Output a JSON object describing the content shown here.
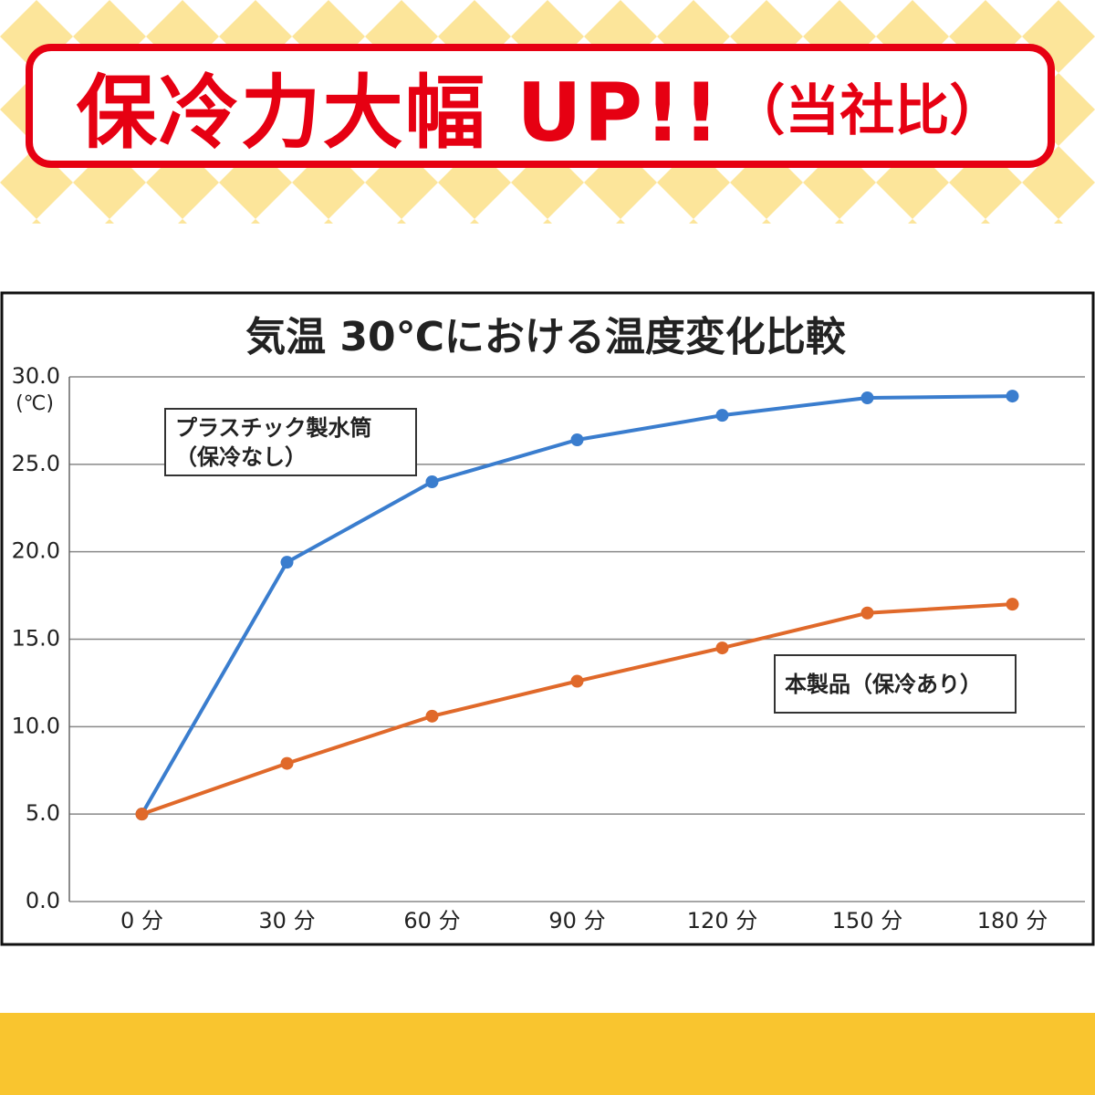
{
  "banner": {
    "headline": "保冷力大幅 UP!!",
    "note": "（当社比）"
  },
  "chart_data": {
    "type": "line",
    "title": "気温 30℃における温度変化比較",
    "y_unit_label": "(℃)",
    "categories": [
      "0 分",
      "30 分",
      "60 分",
      "90 分",
      "120 分",
      "150 分",
      "180 分"
    ],
    "ylim": [
      0,
      30
    ],
    "yticks": [
      {
        "value": 0,
        "label": "0.0"
      },
      {
        "value": 5,
        "label": "5.0"
      },
      {
        "value": 10,
        "label": "10.0"
      },
      {
        "value": 15,
        "label": "15.0"
      },
      {
        "value": 20,
        "label": "20.0"
      },
      {
        "value": 25,
        "label": "25.0"
      },
      {
        "value": 30,
        "label": "30.0"
      }
    ],
    "grid": true,
    "series": [
      {
        "name": "プラスチック製水筒（保冷なし）",
        "color": "#3a7dce",
        "values": [
          5.0,
          19.4,
          24.0,
          26.4,
          27.8,
          28.8,
          28.9
        ]
      },
      {
        "name": "本製品（保冷あり）",
        "color": "#e0692a",
        "values": [
          5.0,
          7.9,
          10.6,
          12.6,
          14.5,
          16.5,
          17.0
        ]
      }
    ]
  }
}
